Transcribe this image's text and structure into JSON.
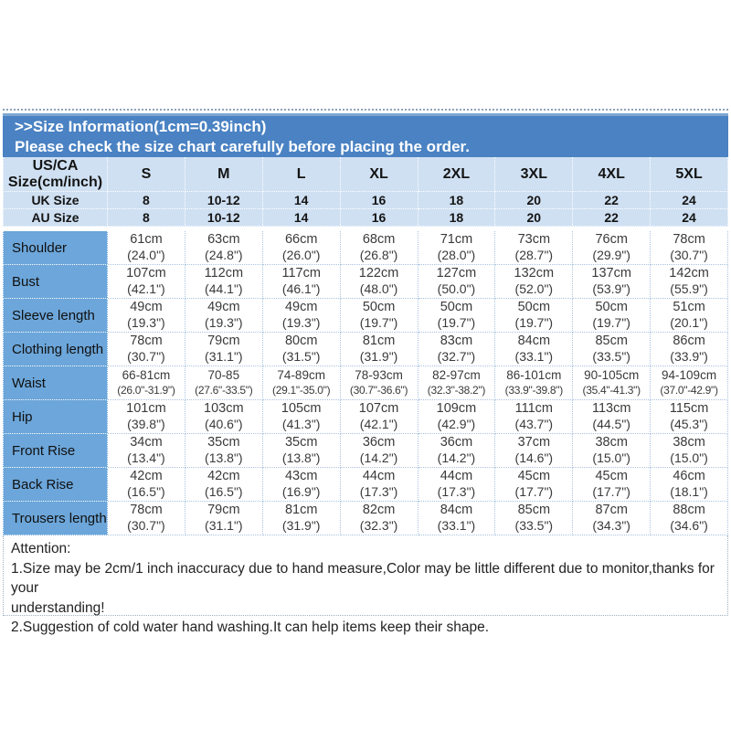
{
  "banner": {
    "line1": ">>Size Information(1cm=0.39inch)",
    "line2": "Please check the size chart carefully before placing the order."
  },
  "table": {
    "corner_header": [
      "US/CA",
      "Size(cm/inch)"
    ],
    "size_labels": [
      "S",
      "M",
      "L",
      "XL",
      "2XL",
      "3XL",
      "4XL",
      "5XL"
    ],
    "uk_row": {
      "label": "UK Size",
      "values": [
        "8",
        "10-12",
        "14",
        "16",
        "18",
        "20",
        "22",
        "24"
      ]
    },
    "au_row": {
      "label": "AU Size",
      "values": [
        "8",
        "10-12",
        "14",
        "16",
        "18",
        "20",
        "22",
        "24"
      ]
    },
    "rows": [
      {
        "label": "Shoulder",
        "values": [
          {
            "cm": "61cm",
            "inch": "(24.0\")"
          },
          {
            "cm": "63cm",
            "inch": "(24.8\")"
          },
          {
            "cm": "66cm",
            "inch": "(26.0\")"
          },
          {
            "cm": "68cm",
            "inch": "(26.8\")"
          },
          {
            "cm": "71cm",
            "inch": "(28.0\")"
          },
          {
            "cm": "73cm",
            "inch": "(28.7\")"
          },
          {
            "cm": "76cm",
            "inch": "(29.9\")"
          },
          {
            "cm": "78cm",
            "inch": "(30.7\")"
          }
        ]
      },
      {
        "label": "Bust",
        "values": [
          {
            "cm": "107cm",
            "inch": "(42.1\")"
          },
          {
            "cm": "112cm",
            "inch": "(44.1\")"
          },
          {
            "cm": "117cm",
            "inch": "(46.1\")"
          },
          {
            "cm": "122cm",
            "inch": "(48.0\")"
          },
          {
            "cm": "127cm",
            "inch": "(50.0\")"
          },
          {
            "cm": "132cm",
            "inch": "(52.0\")"
          },
          {
            "cm": "137cm",
            "inch": "(53.9\")"
          },
          {
            "cm": "142cm",
            "inch": "(55.9\")"
          }
        ]
      },
      {
        "label": "Sleeve length",
        "values": [
          {
            "cm": "49cm",
            "inch": "(19.3\")"
          },
          {
            "cm": "49cm",
            "inch": "(19.3\")"
          },
          {
            "cm": "49cm",
            "inch": "(19.3\")"
          },
          {
            "cm": "50cm",
            "inch": "(19.7\")"
          },
          {
            "cm": "50cm",
            "inch": "(19.7\")"
          },
          {
            "cm": "50cm",
            "inch": "(19.7\")"
          },
          {
            "cm": "50cm",
            "inch": "(19.7\")"
          },
          {
            "cm": "51cm",
            "inch": "(20.1\")"
          }
        ]
      },
      {
        "label": "Clothing length",
        "values": [
          {
            "cm": "78cm",
            "inch": "(30.7\")"
          },
          {
            "cm": "79cm",
            "inch": "(31.1\")"
          },
          {
            "cm": "80cm",
            "inch": "(31.5\")"
          },
          {
            "cm": "81cm",
            "inch": "(31.9\")"
          },
          {
            "cm": "83cm",
            "inch": "(32.7\")"
          },
          {
            "cm": "84cm",
            "inch": "(33.1\")"
          },
          {
            "cm": "85cm",
            "inch": "(33.5\")"
          },
          {
            "cm": "86cm",
            "inch": "(33.9\")"
          }
        ]
      },
      {
        "label": "Waist",
        "values": [
          {
            "cm": "66-81cm",
            "inch": "(26.0\"-31.9\")"
          },
          {
            "cm": "70-85",
            "inch": "(27.6\"-33.5\")"
          },
          {
            "cm": "74-89cm",
            "inch": "(29.1\"-35.0\")"
          },
          {
            "cm": "78-93cm",
            "inch": "(30.7\"-36.6\")"
          },
          {
            "cm": "82-97cm",
            "inch": "(32.3\"-38.2\")"
          },
          {
            "cm": "86-101cm",
            "inch": "(33.9\"-39.8\")"
          },
          {
            "cm": "90-105cm",
            "inch": "(35.4\"-41.3\")"
          },
          {
            "cm": "94-109cm",
            "inch": "(37.0\"-42.9\")"
          }
        ]
      },
      {
        "label": "Hip",
        "values": [
          {
            "cm": "101cm",
            "inch": "(39.8\")"
          },
          {
            "cm": "103cm",
            "inch": "(40.6\")"
          },
          {
            "cm": "105cm",
            "inch": "(41.3\")"
          },
          {
            "cm": "107cm",
            "inch": "(42.1\")"
          },
          {
            "cm": "109cm",
            "inch": "(42.9\")"
          },
          {
            "cm": "111cm",
            "inch": "(43.7\")"
          },
          {
            "cm": "113cm",
            "inch": "(44.5\")"
          },
          {
            "cm": "115cm",
            "inch": "(45.3\")"
          }
        ]
      },
      {
        "label": "Front Rise",
        "values": [
          {
            "cm": "34cm",
            "inch": "(13.4\")"
          },
          {
            "cm": "35cm",
            "inch": "(13.8\")"
          },
          {
            "cm": "35cm",
            "inch": "(13.8\")"
          },
          {
            "cm": "36cm",
            "inch": "(14.2\")"
          },
          {
            "cm": "36cm",
            "inch": "(14.2\")"
          },
          {
            "cm": "37cm",
            "inch": "(14.6\")"
          },
          {
            "cm": "38cm",
            "inch": "(15.0\")"
          },
          {
            "cm": "38cm",
            "inch": "(15.0\")"
          }
        ]
      },
      {
        "label": "Back Rise",
        "values": [
          {
            "cm": "42cm",
            "inch": "(16.5\")"
          },
          {
            "cm": "42cm",
            "inch": "(16.5\")"
          },
          {
            "cm": "43cm",
            "inch": "(16.9\")"
          },
          {
            "cm": "44cm",
            "inch": "(17.3\")"
          },
          {
            "cm": "44cm",
            "inch": "(17.3\")"
          },
          {
            "cm": "45cm",
            "inch": "(17.7\")"
          },
          {
            "cm": "45cm",
            "inch": "(17.7\")"
          },
          {
            "cm": "46cm",
            "inch": "(18.1\")"
          }
        ]
      },
      {
        "label": "Trousers length",
        "values": [
          {
            "cm": "78cm",
            "inch": "(30.7\")"
          },
          {
            "cm": "79cm",
            "inch": "(31.1\")"
          },
          {
            "cm": "81cm",
            "inch": "(31.9\")"
          },
          {
            "cm": "82cm",
            "inch": "(32.3\")"
          },
          {
            "cm": "84cm",
            "inch": "(33.1\")"
          },
          {
            "cm": "85cm",
            "inch": "(33.5\")"
          },
          {
            "cm": "87cm",
            "inch": "(34.3\")"
          },
          {
            "cm": "88cm",
            "inch": "(34.6\")"
          }
        ]
      }
    ]
  },
  "attention": {
    "title": "Attention:",
    "line1": "1.Size may be 2cm/1 inch inaccuracy due to hand measure,Color may be little different due to monitor,thanks for your",
    "line2": "understanding!",
    "line3": "2.Suggestion of cold water hand washing.It can help items keep their shape."
  },
  "colors": {
    "banner_blue": "#4a82c3",
    "header_light_blue": "#cfe0f2",
    "label_column_blue": "#6ca6da",
    "cell_border_blue": "#a9c3e0"
  }
}
